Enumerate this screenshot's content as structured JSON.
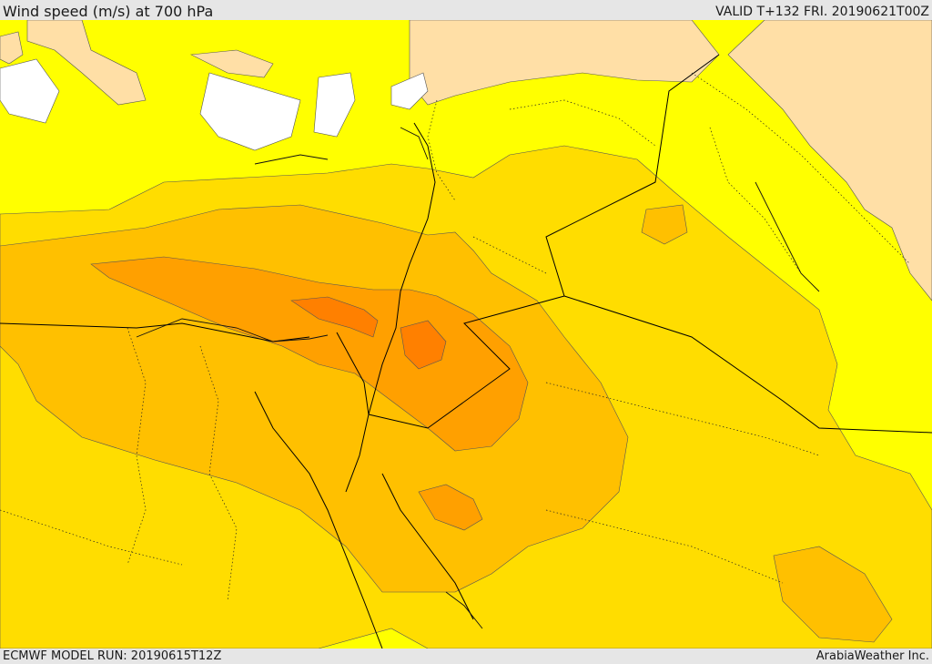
{
  "header": {
    "title": "Wind speed (m/s) at 700 hPa",
    "valid": "VALID T+132 FRI. 20190621T00Z"
  },
  "footer": {
    "model_run": "ECMWF MODEL RUN: 20190615T12Z",
    "credit": "ArabiaWeather Inc."
  },
  "colors": {
    "none": "#ffffff",
    "light_tan": "#ffdfa6",
    "yellow": "#ffff00",
    "light_orange": "#ffdd00",
    "orange": "#ffc000",
    "dark_orange": "#ffa000",
    "darkest_orange": "#ff8000",
    "border": "#000000"
  }
}
